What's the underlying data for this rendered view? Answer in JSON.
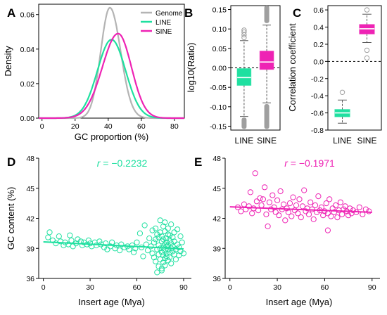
{
  "colors": {
    "line": "#1fe0a0",
    "line_dark": "#18b982",
    "sine": "#ee23b4",
    "sine_dark": "#b81c8c",
    "genome": "#b4b4b4",
    "outlier_gray": "#9f9f9f"
  },
  "panel_letters": [
    "A",
    "B",
    "C",
    "D",
    "E"
  ],
  "chart_data": [
    {
      "panel": "A",
      "type": "line",
      "xlabel": "GC proportion (%)",
      "ylabel": "Density",
      "xlim": [
        -2,
        86
      ],
      "ylim": [
        0,
        0.066
      ],
      "xticks": [
        "0",
        "20",
        "40",
        "60",
        "80"
      ],
      "yticks": [
        "0.00",
        "0.02",
        "0.04",
        "0.06"
      ],
      "legend_position": "top-right",
      "series": [
        {
          "name": "Genome",
          "color_key": "genome",
          "peak_x": 41,
          "peak_y": 0.064,
          "sd_left": 5.5,
          "sd_right": 6.5
        },
        {
          "name": "LINE",
          "color_key": "line",
          "peak_x": 42,
          "peak_y": 0.0455,
          "sd_left": 8.5,
          "sd_right": 8.5
        },
        {
          "name": "SINE",
          "color_key": "sine",
          "peak_x": 46,
          "peak_y": 0.049,
          "sd_left": 9.5,
          "sd_right": 8.0
        }
      ]
    },
    {
      "panel": "B",
      "type": "box",
      "ylabel": "log10(Ratio)",
      "ylim": [
        -0.16,
        0.16
      ],
      "yticks": [
        "0.15",
        "0.10",
        "0.05",
        "0.00",
        "-0.05",
        "-0.10",
        "-0.15"
      ],
      "categories": [
        "LINE",
        "SINE"
      ],
      "reference_line": 0,
      "boxes": [
        {
          "name": "LINE",
          "color_key": "line",
          "q1": -0.045,
          "median": -0.025,
          "q3": -0.002,
          "whisker_low": -0.125,
          "whisker_high": 0.07,
          "outliers_high": [
            0.078,
            0.085,
            0.092,
            0.097
          ],
          "outlier_band_low": [
            -0.157,
            -0.128
          ]
        },
        {
          "name": "SINE",
          "color_key": "sine",
          "q1": -0.004,
          "median": 0.015,
          "q3": 0.043,
          "whisker_low": -0.09,
          "whisker_high": 0.11,
          "outlier_band_high": [
            0.115,
            0.16
          ],
          "outlier_band_low": [
            -0.157,
            -0.093
          ]
        }
      ]
    },
    {
      "panel": "C",
      "type": "box",
      "ylabel": "Correlation coefficient",
      "ylim": [
        -0.8,
        0.65
      ],
      "yticks": [
        "0.6",
        "0.4",
        "0.2",
        "0.0",
        "-0.2",
        "-0.4",
        "-0.6",
        "-0.8"
      ],
      "categories": [
        "LINE",
        "SINE"
      ],
      "reference_line": 0,
      "boxes": [
        {
          "name": "LINE",
          "color_key": "line",
          "q1": -0.645,
          "median": -0.6,
          "q3": -0.56,
          "whisker_low": -0.72,
          "whisker_high": -0.45,
          "outliers": [
            -0.36
          ]
        },
        {
          "name": "SINE",
          "color_key": "sine",
          "q1": 0.32,
          "median": 0.38,
          "q3": 0.43,
          "whisker_low": 0.22,
          "whisker_high": 0.55,
          "outliers": [
            0.6,
            0.13,
            0.04
          ]
        }
      ]
    },
    {
      "panel": "D",
      "type": "scatter",
      "annotation": "r = −0.2232",
      "annotation_prefix": "r",
      "annotation_value": " = −0.2232",
      "xlabel": "Insert age (Mya)",
      "ylabel": "GC content (%)",
      "xlim": [
        -3,
        95
      ],
      "ylim": [
        36,
        48
      ],
      "xticks": [
        "0",
        "30",
        "60",
        "90"
      ],
      "yticks": [
        "48",
        "45",
        "42",
        "39",
        "36"
      ],
      "color_key": "line",
      "fit": {
        "x": [
          0,
          90
        ],
        "y": [
          39.65,
          38.95
        ]
      },
      "points": [
        [
          4,
          40.6
        ],
        [
          3,
          40.1
        ],
        [
          6,
          39.8
        ],
        [
          8,
          39.5
        ],
        [
          10,
          40.2
        ],
        [
          11,
          39.7
        ],
        [
          13,
          39.3
        ],
        [
          14,
          39.6
        ],
        [
          16,
          39.4
        ],
        [
          17,
          40.3
        ],
        [
          18,
          39.8
        ],
        [
          19,
          39.2
        ],
        [
          21,
          39.5
        ],
        [
          22,
          39.9
        ],
        [
          24,
          39.7
        ],
        [
          25,
          39.3
        ],
        [
          26,
          39.6
        ],
        [
          28,
          39.4
        ],
        [
          29,
          39.8
        ],
        [
          30,
          39.5
        ],
        [
          31,
          39.2
        ],
        [
          33,
          39.6
        ],
        [
          34,
          39.3
        ],
        [
          36,
          39.7
        ],
        [
          37,
          39.4
        ],
        [
          39,
          39.1
        ],
        [
          40,
          39.5
        ],
        [
          41,
          38.9
        ],
        [
          43,
          39.2
        ],
        [
          44,
          39.6
        ],
        [
          46,
          39.0
        ],
        [
          47,
          39.3
        ],
        [
          49,
          38.8
        ],
        [
          50,
          39.4
        ],
        [
          52,
          39.1
        ],
        [
          54,
          39.2
        ],
        [
          55,
          38.9
        ],
        [
          57,
          39.3
        ],
        [
          58,
          38.6
        ],
        [
          59,
          39.0
        ],
        [
          60,
          39.6
        ],
        [
          62,
          40.5
        ],
        [
          63,
          39.1
        ],
        [
          64,
          38.2
        ],
        [
          65,
          41.3
        ],
        [
          66,
          39.4
        ],
        [
          67,
          38.8
        ],
        [
          68,
          40.0
        ],
        [
          69,
          39.2
        ],
        [
          70,
          38.5
        ],
        [
          70,
          40.8
        ],
        [
          71,
          39.6
        ],
        [
          71,
          38.1
        ],
        [
          72,
          37.7
        ],
        [
          72,
          39.9
        ],
        [
          72,
          41.0
        ],
        [
          73,
          38.9
        ],
        [
          73,
          40.4
        ],
        [
          73,
          36.6
        ],
        [
          74,
          39.3
        ],
        [
          74,
          37.2
        ],
        [
          74,
          40.1
        ],
        [
          74,
          38.4
        ],
        [
          75,
          39.0
        ],
        [
          75,
          41.8
        ],
        [
          75,
          37.9
        ],
        [
          75,
          40.6
        ],
        [
          76,
          38.6
        ],
        [
          76,
          39.7
        ],
        [
          76,
          37.0
        ],
        [
          76,
          40.2
        ],
        [
          76,
          36.8
        ],
        [
          77,
          38.3
        ],
        [
          77,
          39.1
        ],
        [
          77,
          41.2
        ],
        [
          77,
          39.9
        ],
        [
          77,
          37.6
        ],
        [
          78,
          38.8
        ],
        [
          78,
          40.7
        ],
        [
          78,
          39.4
        ],
        [
          78,
          38.0
        ],
        [
          78,
          41.6
        ],
        [
          78,
          37.3
        ],
        [
          79,
          39.2
        ],
        [
          79,
          38.5
        ],
        [
          79,
          40.0
        ],
        [
          79,
          39.6
        ],
        [
          79,
          38.2
        ],
        [
          80,
          40.4
        ],
        [
          80,
          38.9
        ],
        [
          80,
          39.3
        ],
        [
          80,
          37.8
        ],
        [
          80,
          41.0
        ],
        [
          81,
          38.6
        ],
        [
          81,
          39.8
        ],
        [
          81,
          38.1
        ],
        [
          81,
          40.3
        ],
        [
          82,
          39.0
        ],
        [
          82,
          37.5
        ],
        [
          82,
          39.5
        ],
        [
          82,
          41.4
        ],
        [
          83,
          38.7
        ],
        [
          83,
          40.1
        ],
        [
          83,
          39.2
        ],
        [
          84,
          38.4
        ],
        [
          84,
          40.6
        ],
        [
          84,
          39.7
        ],
        [
          85,
          38.9
        ],
        [
          85,
          37.9
        ],
        [
          86,
          39.4
        ],
        [
          86,
          40.9
        ],
        [
          87,
          38.3
        ],
        [
          87,
          39.1
        ],
        [
          88,
          40.2
        ],
        [
          88,
          38.7
        ],
        [
          89,
          39.6
        ],
        [
          90,
          38.5
        ]
      ]
    },
    {
      "panel": "E",
      "type": "scatter",
      "annotation": "r = −0.1971",
      "annotation_prefix": "r",
      "annotation_value": " = −0.1971",
      "xlabel": "Insert age (Mya)",
      "ylabel": "",
      "xlim": [
        -3,
        95
      ],
      "ylim": [
        36,
        48
      ],
      "xticks": [
        "0",
        "30",
        "60",
        "90"
      ],
      "yticks": [
        "48",
        "45",
        "42",
        "39",
        "36"
      ],
      "color_key": "sine",
      "fit": {
        "x": [
          0,
          90
        ],
        "y": [
          43.15,
          42.6
        ]
      },
      "points": [
        [
          5,
          43.1
        ],
        [
          7,
          42.7
        ],
        [
          9,
          43.4
        ],
        [
          10,
          42.9
        ],
        [
          12,
          43.2
        ],
        [
          13,
          44.6
        ],
        [
          14,
          42.5
        ],
        [
          15,
          43.0
        ],
        [
          16,
          46.5
        ],
        [
          17,
          43.7
        ],
        [
          18,
          42.8
        ],
        [
          19,
          44.0
        ],
        [
          20,
          43.3
        ],
        [
          21,
          43.9
        ],
        [
          22,
          45.1
        ],
        [
          23,
          42.4
        ],
        [
          24,
          41.2
        ],
        [
          25,
          43.6
        ],
        [
          26,
          42.9
        ],
        [
          27,
          44.3
        ],
        [
          28,
          43.1
        ],
        [
          29,
          42.6
        ],
        [
          30,
          43.8
        ],
        [
          31,
          42.3
        ],
        [
          32,
          44.7
        ],
        [
          33,
          42.9
        ],
        [
          34,
          43.4
        ],
        [
          35,
          41.8
        ],
        [
          36,
          43.0
        ],
        [
          37,
          42.6
        ],
        [
          38,
          43.5
        ],
        [
          39,
          42.2
        ],
        [
          40,
          44.1
        ],
        [
          41,
          42.8
        ],
        [
          42,
          43.3
        ],
        [
          43,
          42.5
        ],
        [
          44,
          43.9
        ],
        [
          45,
          42.1
        ],
        [
          46,
          43.2
        ],
        [
          47,
          44.8
        ],
        [
          48,
          42.7
        ],
        [
          49,
          43.0
        ],
        [
          50,
          42.4
        ],
        [
          51,
          43.6
        ],
        [
          52,
          42.9
        ],
        [
          53,
          41.9
        ],
        [
          54,
          43.3
        ],
        [
          55,
          42.6
        ],
        [
          56,
          44.2
        ],
        [
          57,
          42.8
        ],
        [
          58,
          43.1
        ],
        [
          59,
          42.3
        ],
        [
          60,
          42.7
        ],
        [
          61,
          43.5
        ],
        [
          62,
          40.8
        ],
        [
          62,
          42.5
        ],
        [
          63,
          43.9
        ],
        [
          64,
          42.2
        ],
        [
          65,
          43.0
        ],
        [
          66,
          42.6
        ],
        [
          67,
          43.3
        ],
        [
          68,
          42.1
        ],
        [
          69,
          42.8
        ],
        [
          70,
          43.6
        ],
        [
          71,
          42.4
        ],
        [
          72,
          42.9
        ],
        [
          73,
          43.2
        ],
        [
          74,
          42.7
        ],
        [
          75,
          42.3
        ],
        [
          76,
          43.0
        ],
        [
          77,
          42.5
        ],
        [
          78,
          42.8
        ],
        [
          80,
          42.6
        ],
        [
          82,
          43.1
        ],
        [
          84,
          42.4
        ],
        [
          86,
          42.9
        ],
        [
          88,
          42.7
        ]
      ]
    }
  ]
}
